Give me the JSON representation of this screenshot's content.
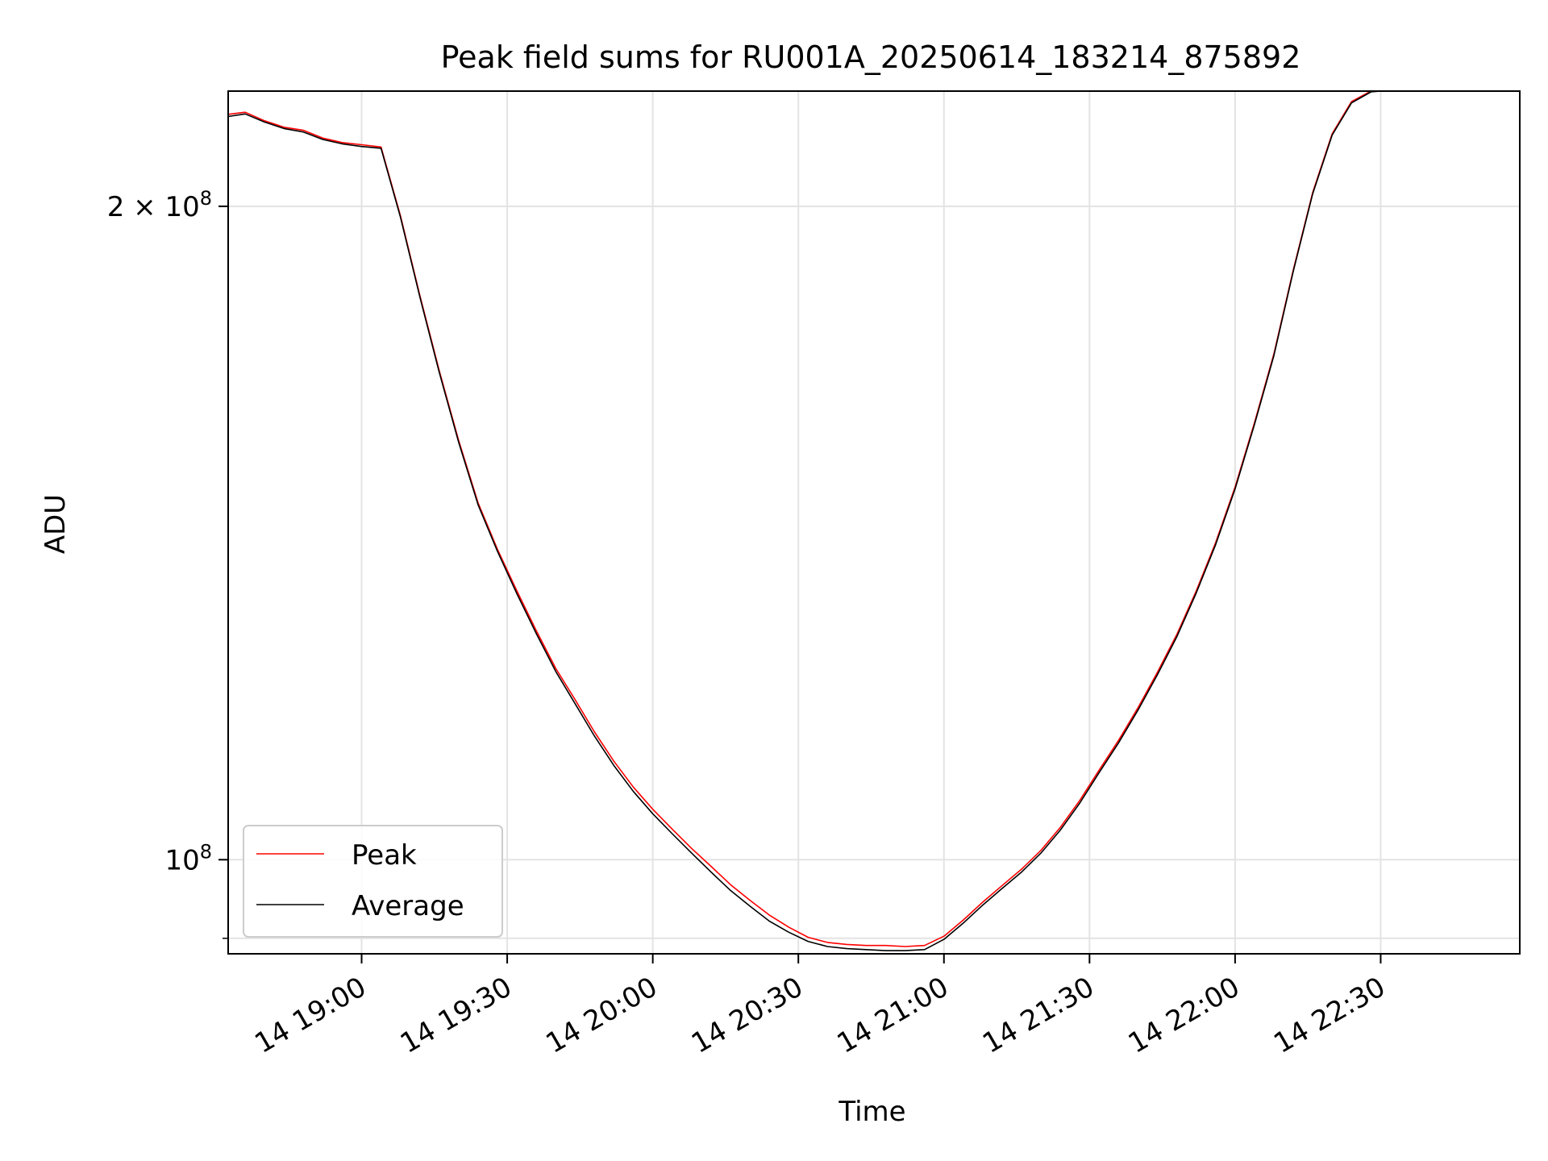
{
  "chart_data": {
    "type": "line",
    "title": "Peak field sums for RU001A_20250614_183214_875892",
    "xlabel": "Time",
    "ylabel": "ADU",
    "y_scale": "log",
    "grid": true,
    "legend_position": "lower-left",
    "xlim": [
      "2025-06-14 18:32:30",
      "2025-06-14 22:58:40"
    ],
    "ylim": [
      90500000,
      226000000
    ],
    "x_ticks": [
      {
        "t": "2025-06-14 19:00",
        "label": "14 19:00"
      },
      {
        "t": "2025-06-14 19:30",
        "label": "14 19:30"
      },
      {
        "t": "2025-06-14 20:00",
        "label": "14 20:00"
      },
      {
        "t": "2025-06-14 20:30",
        "label": "14 20:30"
      },
      {
        "t": "2025-06-14 21:00",
        "label": "14 21:00"
      },
      {
        "t": "2025-06-14 21:30",
        "label": "14 21:30"
      },
      {
        "t": "2025-06-14 22:00",
        "label": "14 22:00"
      },
      {
        "t": "2025-06-14 22:30",
        "label": "14 22:30"
      }
    ],
    "y_ticks": [
      {
        "value": 100000000,
        "base": "10",
        "exp": "8",
        "coef": ""
      },
      {
        "value": 200000000,
        "base": "10",
        "exp": "8",
        "coef": "2 × "
      }
    ],
    "y_minor_ticks": [
      92000000
    ],
    "x": [
      "2025-06-14 18:32:30",
      "2025-06-14 18:36",
      "2025-06-14 18:40",
      "2025-06-14 18:44",
      "2025-06-14 18:48",
      "2025-06-14 18:52",
      "2025-06-14 18:56",
      "2025-06-14 19:00",
      "2025-06-14 19:04",
      "2025-06-14 19:08",
      "2025-06-14 19:12",
      "2025-06-14 19:16",
      "2025-06-14 19:20",
      "2025-06-14 19:24",
      "2025-06-14 19:28",
      "2025-06-14 19:32",
      "2025-06-14 19:36",
      "2025-06-14 19:40",
      "2025-06-14 19:44",
      "2025-06-14 19:48",
      "2025-06-14 19:52",
      "2025-06-14 19:56",
      "2025-06-14 20:00",
      "2025-06-14 20:04",
      "2025-06-14 20:08",
      "2025-06-14 20:12",
      "2025-06-14 20:16",
      "2025-06-14 20:20",
      "2025-06-14 20:24",
      "2025-06-14 20:28",
      "2025-06-14 20:32",
      "2025-06-14 20:36",
      "2025-06-14 20:40",
      "2025-06-14 20:44",
      "2025-06-14 20:48",
      "2025-06-14 20:52",
      "2025-06-14 20:56",
      "2025-06-14 21:00",
      "2025-06-14 21:04",
      "2025-06-14 21:08",
      "2025-06-14 21:12",
      "2025-06-14 21:16",
      "2025-06-14 21:20",
      "2025-06-14 21:24",
      "2025-06-14 21:28",
      "2025-06-14 21:32",
      "2025-06-14 21:36",
      "2025-06-14 21:40",
      "2025-06-14 21:44",
      "2025-06-14 21:48",
      "2025-06-14 21:52",
      "2025-06-14 21:56",
      "2025-06-14 22:00",
      "2025-06-14 22:04",
      "2025-06-14 22:08",
      "2025-06-14 22:12",
      "2025-06-14 22:16",
      "2025-06-14 22:20",
      "2025-06-14 22:24",
      "2025-06-14 22:28",
      "2025-06-14 22:30"
    ],
    "series": [
      {
        "name": "Peak",
        "color": "#ff0000",
        "values": [
          220500000,
          221000000,
          219000000,
          217500000,
          216800000,
          215000000,
          214000000,
          213500000,
          213000000,
          198000000,
          182000000,
          168000000,
          156000000,
          146000000,
          139000000,
          133000000,
          127500000,
          122500000,
          118500000,
          114500000,
          111000000,
          108000000,
          105500000,
          103300000,
          101200000,
          99300000,
          97400000,
          95800000,
          94300000,
          93100000,
          92100000,
          91600000,
          91400000,
          91300000,
          91300000,
          91200000,
          91300000,
          92200000,
          93800000,
          95600000,
          97300000,
          99000000,
          101000000,
          103500000,
          106500000,
          110000000,
          113500000,
          117500000,
          122000000,
          127000000,
          133000000,
          140000000,
          148500000,
          159000000,
          171000000,
          187000000,
          203000000,
          216000000,
          223500000,
          226000000,
          226000000
        ]
      },
      {
        "name": "Average",
        "color": "#000000",
        "values": [
          220000000,
          220600000,
          218700000,
          217200000,
          216400000,
          214700000,
          213700000,
          213100000,
          212700000,
          197700000,
          181700000,
          167700000,
          155700000,
          145700000,
          138700000,
          132600000,
          127100000,
          122100000,
          118000000,
          114000000,
          110500000,
          107500000,
          105000000,
          102800000,
          100700000,
          98700000,
          96800000,
          95200000,
          93700000,
          92600000,
          91700000,
          91200000,
          91000000,
          90900000,
          90800000,
          90800000,
          90900000,
          91900000,
          93500000,
          95300000,
          97000000,
          98700000,
          100700000,
          103200000,
          106200000,
          109700000,
          113200000,
          117200000,
          121700000,
          126700000,
          132700000,
          139700000,
          148200000,
          158700000,
          170700000,
          186700000,
          202700000,
          215700000,
          223200000,
          225800000,
          226000000
        ]
      }
    ]
  }
}
